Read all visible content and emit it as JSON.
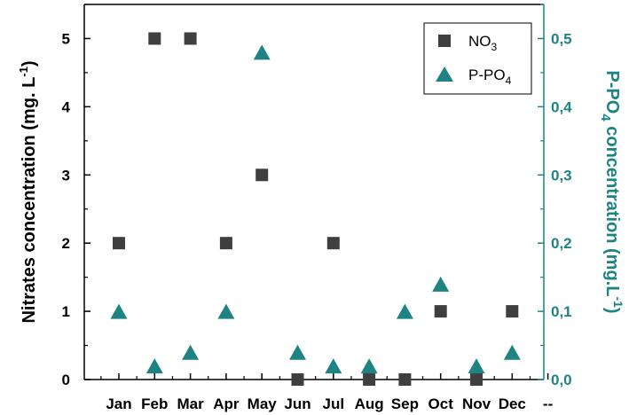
{
  "chart_data": {
    "type": "scatter",
    "categories": [
      "Jan",
      "Feb",
      "Mar",
      "Apr",
      "May",
      "Jun",
      "Jul",
      "Aug",
      "Sep",
      "Oct",
      "Nov",
      "Dec",
      "--"
    ],
    "ylabel_left_main": "Nitrates concentration (mg. L",
    "ylabel_left_sup": "-1",
    "ylabel_left_end": ")",
    "ylabel_right_main": "P-PO",
    "ylabel_right_sub": "4",
    "ylabel_right_rest": " concentration (mg.L",
    "ylabel_right_sup": "-1",
    "ylabel_right_end": ")",
    "ylim_left": [
      0,
      5.5
    ],
    "ylim_right": [
      0,
      0.55
    ],
    "left_ticks": [
      "0",
      "1",
      "2",
      "3",
      "4",
      "5"
    ],
    "right_ticks": [
      "0,0",
      "0,1",
      "0,2",
      "0,3",
      "0,4",
      "0,5"
    ],
    "series": [
      {
        "name": "NO3",
        "label_main": "NO",
        "label_sub": "3",
        "axis": "left",
        "marker": "square",
        "color": "#3f3f3f",
        "values": [
          2,
          5,
          5,
          2,
          3,
          0,
          2,
          0,
          0,
          1,
          0,
          1
        ]
      },
      {
        "name": "P-PO4",
        "label_main": "P-PO",
        "label_sub": "4",
        "axis": "right",
        "marker": "triangle",
        "color": "#1f8383",
        "values": [
          0.1,
          0.02,
          0.04,
          0.1,
          0.48,
          0.04,
          0.02,
          0.02,
          0.1,
          0.14,
          0.02,
          0.04
        ]
      }
    ],
    "legend_position": "top-right",
    "right_axis_color": "#1f8383"
  }
}
